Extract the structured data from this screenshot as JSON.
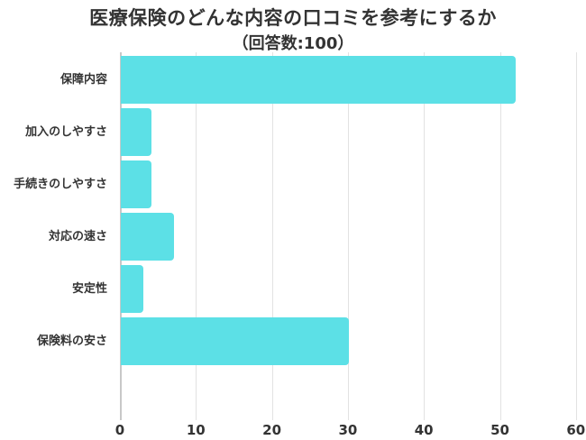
{
  "chart_data": {
    "type": "bar",
    "orientation": "horizontal",
    "title": "医療保険のどんな内容の口コミを参考にするか",
    "subtitle": "（回答数:100）",
    "categories": [
      "保障内容",
      "加入のしやすさ",
      "手続きのしやすさ",
      "対応の速さ",
      "安定性",
      "保険料の安さ"
    ],
    "values": [
      52,
      4,
      4,
      7,
      3,
      30
    ],
    "xlabel": "",
    "ylabel": "",
    "xlim": [
      0,
      60
    ],
    "xticks": [
      "0",
      "10",
      "20",
      "30",
      "40",
      "50",
      "60"
    ],
    "grid": true,
    "legend": null,
    "bar_color": "#5ce0e6"
  }
}
